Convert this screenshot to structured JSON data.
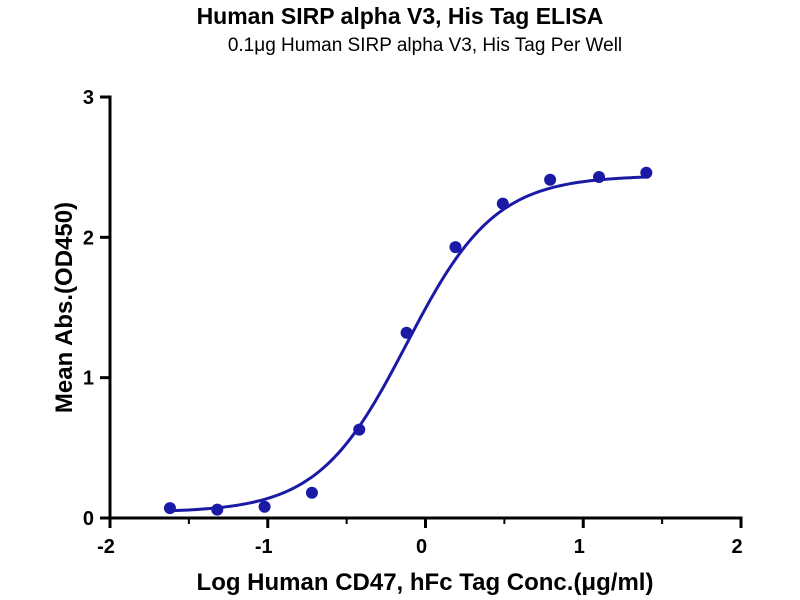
{
  "chart_data": {
    "type": "scatter",
    "title": "Human SIRP alpha V3, His Tag ELISA",
    "subtitle": "0.1μg Human SIRP alpha V3, His Tag Per Well",
    "xlabel": "Log Human CD47, hFc Tag Conc.(μg/ml)",
    "ylabel": "Mean Abs.(OD450)",
    "xlim": [
      -2,
      2
    ],
    "ylim": [
      0,
      3
    ],
    "x_ticks": [
      "-2",
      "-1",
      "0",
      "1",
      "2"
    ],
    "y_ticks": [
      "0",
      "1",
      "2",
      "3"
    ],
    "grid": false,
    "legend": "none",
    "series": [
      {
        "x": [
          -1.62,
          -1.32,
          -1.02,
          -0.72,
          -0.42,
          -0.12,
          0.19,
          0.49,
          0.79,
          1.1,
          1.4
        ],
        "y": [
          0.07,
          0.06,
          0.08,
          0.18,
          0.63,
          1.32,
          1.93,
          2.24,
          2.41,
          2.43,
          2.46
        ],
        "fit": {
          "model": "4PL",
          "bottom": 0.04,
          "top": 2.44,
          "log_ec50": -0.12,
          "hill": 1.55,
          "x_range": [
            -1.62,
            1.4
          ]
        }
      }
    ],
    "color": "#1a1aa6"
  }
}
